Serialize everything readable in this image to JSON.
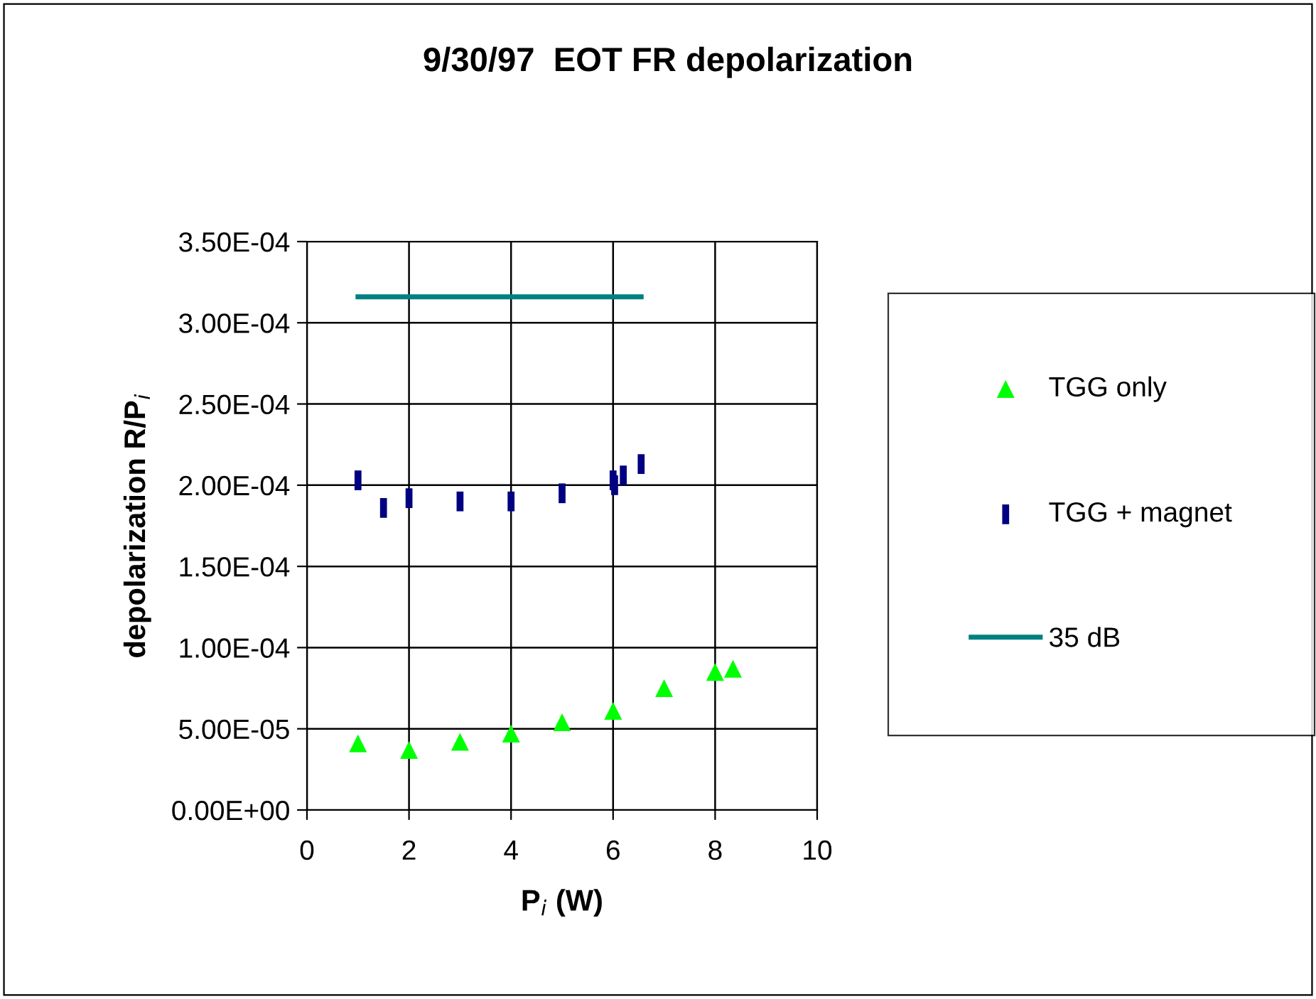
{
  "chart_data": {
    "type": "scatter",
    "title": "9/30/97  EOT FR depolarization",
    "xlabel": "P$_{i}$ (W)",
    "ylabel": "depolarization R/P$_{i}$",
    "xlim": [
      0,
      10
    ],
    "xticks": [
      0,
      2,
      4,
      6,
      8,
      10
    ],
    "ylim": [
      0,
      0.00035
    ],
    "yticks": [
      {
        "value": 0,
        "label": "0.00E+00"
      },
      {
        "value": 5e-05,
        "label": "5.00E-05"
      },
      {
        "value": 0.0001,
        "label": "1.00E-04"
      },
      {
        "value": 0.00015,
        "label": "1.50E-04"
      },
      {
        "value": 0.0002,
        "label": "2.00E-04"
      },
      {
        "value": 0.00025,
        "label": "2.50E-04"
      },
      {
        "value": 0.0003,
        "label": "3.00E-04"
      },
      {
        "value": 0.00035,
        "label": "3.50E-04"
      }
    ],
    "grid": true,
    "legend": "right",
    "series": [
      {
        "name": "TGG only",
        "color": "#00ff00",
        "marker": "triangle",
        "x": [
          1,
          2,
          3,
          4,
          5,
          6,
          7,
          8,
          8.35
        ],
        "values": [
          4.1e-05,
          3.7e-05,
          4.2e-05,
          4.7e-05,
          5.4e-05,
          6.1e-05,
          7.5e-05,
          8.5e-05,
          8.7e-05
        ]
      },
      {
        "name": "TGG + magnet",
        "color": "#000080",
        "x": [
          1,
          1.5,
          2,
          3,
          4,
          5,
          6,
          6.03,
          6.2,
          6.55
        ],
        "values": [
          0.000203,
          0.000186,
          0.000192,
          0.00019,
          0.00019,
          0.000195,
          0.000203,
          0.0002,
          0.000206,
          0.000213
        ]
      },
      {
        "name": "35 dB",
        "type": "line",
        "color": "#008080",
        "marker": "none",
        "x": [
          1,
          6.55
        ],
        "values": [
          0.000316,
          0.000316
        ]
      }
    ]
  }
}
